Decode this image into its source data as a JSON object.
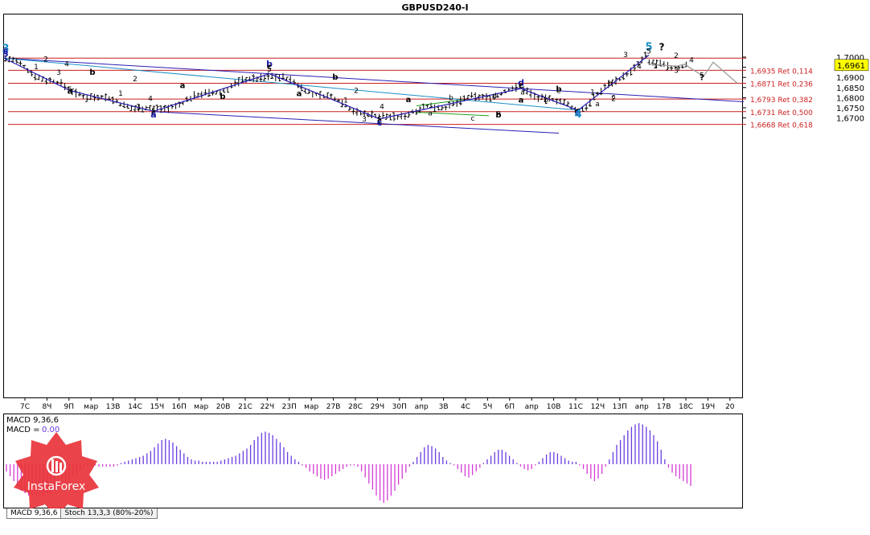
{
  "chart_data": {
    "type": "candlestick",
    "title": "GBPUSD240-I",
    "symbol": "GBPUSD",
    "timeframe": "H4",
    "y_axis": {
      "min": 1.6625,
      "max": 1.7058,
      "ticks": [
        "1,7000",
        "1,6950",
        "1,6900",
        "1,6850",
        "1,6800",
        "1,6750",
        "1,6700"
      ]
    },
    "x_axis_ticks": [
      "7С",
      "8Ч",
      "9П",
      "мар",
      "13В",
      "14С",
      "15Ч",
      "16П",
      "мар",
      "20В",
      "21С",
      "22Ч",
      "23П",
      "мар",
      "27В",
      "28С",
      "29Ч",
      "30П",
      "апр",
      "3В",
      "4С",
      "5Ч",
      "6П",
      "апр",
      "10В",
      "11С",
      "12Ч",
      "13П",
      "апр",
      "17В",
      "18С",
      "19Ч",
      "20"
    ],
    "current_price": {
      "value": 1.6961,
      "label": "1,6961"
    },
    "fibonacci_levels": [
      {
        "price": 1.6995,
        "label": ""
      },
      {
        "price": 1.6935,
        "label": "1,6935 Ret 0,114"
      },
      {
        "price": 1.6871,
        "label": "1,6871 Ret 0,236"
      },
      {
        "price": 1.6793,
        "label": "1,6793 Ret 0,382"
      },
      {
        "price": 1.6731,
        "label": "1,6731 Ret 0,500"
      },
      {
        "price": 1.6668,
        "label": "1,6668 Ret 0,618"
      }
    ],
    "wave_points": [
      {
        "x": 0,
        "price": 1.6995
      },
      {
        "x": 82,
        "price": 1.6835
      },
      {
        "x": 186,
        "price": 1.6733
      },
      {
        "x": 330,
        "price": 1.6918
      },
      {
        "x": 467,
        "price": 1.6695
      },
      {
        "x": 643,
        "price": 1.6845
      },
      {
        "x": 714,
        "price": 1.6738
      },
      {
        "x": 802,
        "price": 1.701
      }
    ],
    "projection_points": [
      {
        "x": 802,
        "price": 1.6965
      },
      {
        "x": 822,
        "price": 1.696
      },
      {
        "x": 836,
        "price": 1.6955
      },
      {
        "x": 846,
        "price": 1.6965
      },
      {
        "x": 870,
        "price": 1.6905
      },
      {
        "x": 882,
        "price": 1.6975
      },
      {
        "x": 912,
        "price": 1.6871
      }
    ],
    "wave_labels": [
      {
        "text": "3",
        "x": 2,
        "price": 1.7025,
        "color": "#1a8fc7",
        "size": 13,
        "bold": true
      },
      {
        "text": "5",
        "x": 2,
        "price": 1.7013,
        "color": "#1a1aa6",
        "size": 10,
        "bold": true
      },
      {
        "text": "5",
        "x": 2,
        "price": 1.7002,
        "color": "#1a1aa6",
        "size": 10,
        "bold": true
      },
      {
        "text": "5",
        "x": 802,
        "price": 1.7033,
        "color": "#1a8fc7",
        "size": 13,
        "bold": true
      },
      {
        "text": "?",
        "x": 818,
        "price": 1.7033,
        "color": "#000000",
        "size": 12,
        "bold": true
      },
      {
        "text": "5",
        "x": 802,
        "price": 1.7017,
        "color": "#000000",
        "size": 9,
        "bold": false
      },
      {
        "text": "b",
        "x": 330,
        "price": 1.6952,
        "color": "#1a1aa6",
        "size": 11,
        "bold": true
      },
      {
        "text": "c",
        "x": 330,
        "price": 1.694,
        "color": "#000000",
        "size": 10,
        "bold": true
      },
      {
        "text": "5",
        "x": 330,
        "price": 1.6928,
        "color": "#000000",
        "size": 9,
        "bold": false
      },
      {
        "text": "d",
        "x": 643,
        "price": 1.686,
        "color": "#1a1aa6",
        "size": 11,
        "bold": true
      },
      {
        "text": "c",
        "x": 643,
        "price": 1.6848,
        "color": "#000000",
        "size": 10,
        "bold": true
      },
      {
        "text": "c",
        "x": 714,
        "price": 1.6725,
        "color": "#000000",
        "size": 10,
        "bold": true
      },
      {
        "text": "e",
        "x": 714,
        "price": 1.6715,
        "color": "#1a1aa6",
        "size": 11,
        "bold": true
      },
      {
        "text": "4",
        "x": 714,
        "price": 1.6703,
        "color": "#1a8fc7",
        "size": 13,
        "bold": true
      },
      {
        "text": "5",
        "x": 186,
        "price": 1.6722,
        "color": "#000000",
        "size": 9,
        "bold": false
      },
      {
        "text": "c",
        "x": 186,
        "price": 1.6713,
        "color": "#000000",
        "size": 10,
        "bold": true
      },
      {
        "text": "a",
        "x": 186,
        "price": 1.6703,
        "color": "#1a1aa6",
        "size": 11,
        "bold": true
      },
      {
        "text": "5",
        "x": 467,
        "price": 1.6681,
        "color": "#000000",
        "size": 9,
        "bold": false
      },
      {
        "text": "c",
        "x": 467,
        "price": 1.6672,
        "color": "#000000",
        "size": 10,
        "bold": true
      },
      {
        "text": "c",
        "x": 467,
        "price": 1.6662,
        "color": "#1a1aa6",
        "size": 11,
        "bold": true
      },
      {
        "text": "2",
        "x": 52,
        "price": 1.6978,
        "color": "#000000",
        "size": 9,
        "bold": false
      },
      {
        "text": "1",
        "x": 40,
        "price": 1.694,
        "color": "#000000",
        "size": 9,
        "bold": false
      },
      {
        "text": "4",
        "x": 78,
        "price": 1.6955,
        "color": "#000000",
        "size": 9,
        "bold": false
      },
      {
        "text": "3",
        "x": 68,
        "price": 1.6912,
        "color": "#000000",
        "size": 9,
        "bold": false
      },
      {
        "text": "5",
        "x": 82,
        "price": 1.683,
        "color": "#000000",
        "size": 9,
        "bold": false
      },
      {
        "text": "a",
        "x": 82,
        "price": 1.682,
        "color": "#000000",
        "size": 10,
        "bold": true
      },
      {
        "text": "b",
        "x": 110,
        "price": 1.6912,
        "color": "#000000",
        "size": 10,
        "bold": true
      },
      {
        "text": "1",
        "x": 145,
        "price": 1.681,
        "color": "#000000",
        "size": 9,
        "bold": false
      },
      {
        "text": "2",
        "x": 163,
        "price": 1.688,
        "color": "#000000",
        "size": 9,
        "bold": false
      },
      {
        "text": "4",
        "x": 182,
        "price": 1.6783,
        "color": "#000000",
        "size": 9,
        "bold": false
      },
      {
        "text": "3",
        "x": 167,
        "price": 1.6745,
        "color": "#000000",
        "size": 9,
        "bold": false
      },
      {
        "text": "a",
        "x": 222,
        "price": 1.6847,
        "color": "#000000",
        "size": 10,
        "bold": true
      },
      {
        "text": "b",
        "x": 272,
        "price": 1.6793,
        "color": "#000000",
        "size": 10,
        "bold": true
      },
      {
        "text": "b",
        "x": 412,
        "price": 1.6888,
        "color": "#000000",
        "size": 10,
        "bold": true
      },
      {
        "text": "a",
        "x": 367,
        "price": 1.6808,
        "color": "#000000",
        "size": 10,
        "bold": true
      },
      {
        "text": "2",
        "x": 438,
        "price": 1.6823,
        "color": "#000000",
        "size": 9,
        "bold": false
      },
      {
        "text": "1",
        "x": 425,
        "price": 1.6775,
        "color": "#000000",
        "size": 9,
        "bold": false
      },
      {
        "text": "4",
        "x": 470,
        "price": 1.6745,
        "color": "#000000",
        "size": 9,
        "bold": false
      },
      {
        "text": "3",
        "x": 448,
        "price": 1.6683,
        "color": "#000000",
        "size": 9,
        "bold": false
      },
      {
        "text": "a",
        "x": 503,
        "price": 1.6777,
        "color": "#000000",
        "size": 10,
        "bold": true
      },
      {
        "text": "b",
        "x": 556,
        "price": 1.6787,
        "color": "#000000",
        "size": 9,
        "bold": false
      },
      {
        "text": "a",
        "x": 530,
        "price": 1.6713,
        "color": "#000000",
        "size": 9,
        "bold": false
      },
      {
        "text": "c",
        "x": 583,
        "price": 1.6687,
        "color": "#000000",
        "size": 9,
        "bold": false
      },
      {
        "text": "e",
        "x": 615,
        "price": 1.6715,
        "color": "#000000",
        "size": 9,
        "bold": false
      },
      {
        "text": "b",
        "x": 615,
        "price": 1.6703,
        "color": "#000000",
        "size": 10,
        "bold": true
      },
      {
        "text": "d",
        "x": 610,
        "price": 1.6798,
        "color": "#000000",
        "size": 9,
        "bold": false
      },
      {
        "text": "a",
        "x": 645,
        "price": 1.6815,
        "color": "#000000",
        "size": 9,
        "bold": false
      },
      {
        "text": "a",
        "x": 643,
        "price": 1.6775,
        "color": "#000000",
        "size": 10,
        "bold": true
      },
      {
        "text": "b",
        "x": 674,
        "price": 1.6777,
        "color": "#000000",
        "size": 9,
        "bold": false
      },
      {
        "text": "b",
        "x": 690,
        "price": 1.683,
        "color": "#000000",
        "size": 10,
        "bold": true
      },
      {
        "text": "c",
        "x": 690,
        "price": 1.6822,
        "color": "#000000",
        "size": 9,
        "bold": false
      },
      {
        "text": "1",
        "x": 732,
        "price": 1.6815,
        "color": "#000000",
        "size": 9,
        "bold": false
      },
      {
        "text": "a",
        "x": 738,
        "price": 1.6758,
        "color": "#000000",
        "size": 9,
        "bold": false
      },
      {
        "text": "b",
        "x": 754,
        "price": 1.686,
        "color": "#000000",
        "size": 9,
        "bold": false
      },
      {
        "text": "c",
        "x": 758,
        "price": 1.6793,
        "color": "#000000",
        "size": 9,
        "bold": false
      },
      {
        "text": "2",
        "x": 758,
        "price": 1.6783,
        "color": "#000000",
        "size": 9,
        "bold": false
      },
      {
        "text": "3",
        "x": 773,
        "price": 1.7,
        "color": "#000000",
        "size": 9,
        "bold": false
      },
      {
        "text": "4",
        "x": 790,
        "price": 1.6943,
        "color": "#000000",
        "size": 9,
        "bold": false
      },
      {
        "text": "1",
        "x": 810,
        "price": 1.6945,
        "color": "#000000",
        "size": 9,
        "bold": false
      },
      {
        "text": "2",
        "x": 836,
        "price": 1.6997,
        "color": "#000000",
        "size": 9,
        "bold": false
      },
      {
        "text": "3",
        "x": 836,
        "price": 1.6923,
        "color": "#000000",
        "size": 9,
        "bold": false
      },
      {
        "text": "4",
        "x": 855,
        "price": 1.6975,
        "color": "#000000",
        "size": 9,
        "bold": false
      },
      {
        "text": "5",
        "x": 868,
        "price": 1.6898,
        "color": "#000000",
        "size": 9,
        "bold": false
      },
      {
        "text": "?",
        "x": 868,
        "price": 1.6887,
        "color": "#000000",
        "size": 10,
        "bold": true
      }
    ],
    "indicators": {
      "macd_label": "MACD 9,36,6",
      "macd_value_prefix": "MACD =",
      "macd_value": "0.00",
      "histogram": [
        -0.3,
        -0.5,
        -0.7,
        -0.9,
        -1.1,
        -1.2,
        -1.3,
        -1.3,
        -1.3,
        -1.3,
        -1.3,
        -1.2,
        -1.2,
        -1.1,
        -1.0,
        -0.9,
        -0.8,
        -0.7,
        -0.5,
        -0.4,
        -0.2,
        -0.1,
        -0.05,
        -0.05,
        -0.05,
        -0.1,
        -0.1,
        -0.1,
        -0.1,
        -0.1,
        -0.05,
        0.05,
        0.1,
        0.15,
        0.2,
        0.25,
        0.3,
        0.35,
        0.45,
        0.55,
        0.7,
        0.85,
        1.0,
        1.05,
        1.0,
        0.9,
        0.75,
        0.6,
        0.45,
        0.3,
        0.2,
        0.15,
        0.15,
        0.1,
        0.1,
        0.1,
        0.1,
        0.1,
        0.15,
        0.2,
        0.25,
        0.3,
        0.35,
        0.45,
        0.55,
        0.65,
        0.8,
        1.0,
        1.15,
        1.3,
        1.35,
        1.3,
        1.2,
        1.05,
        0.9,
        0.7,
        0.5,
        0.35,
        0.2,
        0.1,
        -0.05,
        -0.15,
        -0.3,
        -0.4,
        -0.5,
        -0.6,
        -0.65,
        -0.6,
        -0.5,
        -0.4,
        -0.3,
        -0.2,
        -0.1,
        -0.05,
        -0.05,
        -0.1,
        -0.3,
        -0.55,
        -0.8,
        -1.05,
        -1.3,
        -1.5,
        -1.6,
        -1.5,
        -1.3,
        -1.1,
        -0.85,
        -0.6,
        -0.35,
        -0.1,
        0.1,
        0.3,
        0.5,
        0.7,
        0.8,
        0.75,
        0.65,
        0.5,
        0.3,
        0.15,
        0.05,
        -0.05,
        -0.2,
        -0.35,
        -0.5,
        -0.55,
        -0.45,
        -0.3,
        -0.15,
        0.05,
        0.2,
        0.35,
        0.5,
        0.6,
        0.6,
        0.5,
        0.35,
        0.2,
        0.05,
        -0.1,
        -0.2,
        -0.25,
        -0.2,
        -0.05,
        0.1,
        0.25,
        0.4,
        0.5,
        0.5,
        0.45,
        0.35,
        0.25,
        0.15,
        0.1,
        0.1,
        -0.05,
        -0.2,
        -0.4,
        -0.6,
        -0.7,
        -0.6,
        -0.4,
        -0.1,
        0.2,
        0.5,
        0.8,
        1.0,
        1.2,
        1.4,
        1.55,
        1.65,
        1.7,
        1.65,
        1.55,
        1.4,
        1.2,
        0.95,
        0.6,
        0.2,
        -0.15,
        -0.35,
        -0.5,
        -0.6,
        -0.7,
        -0.8,
        -0.9
      ],
      "positive_color": "#6b3ce0",
      "negative_color": "#d63ad6",
      "tabs": [
        "MACD 9,36,6",
        "Stoch 13,3,3 (80%-20%)"
      ]
    },
    "watermark": "InstaForex",
    "colors": {
      "candles": "#000000",
      "fib_lines": "#cc1f1f",
      "fib_text": "#cc1f1f",
      "channel_navy": "#2a1fb3",
      "line_blue": "#1a8fc7",
      "projection": "#9a9a9a",
      "green": "#1fa31f",
      "badge": "#e8333a"
    }
  }
}
